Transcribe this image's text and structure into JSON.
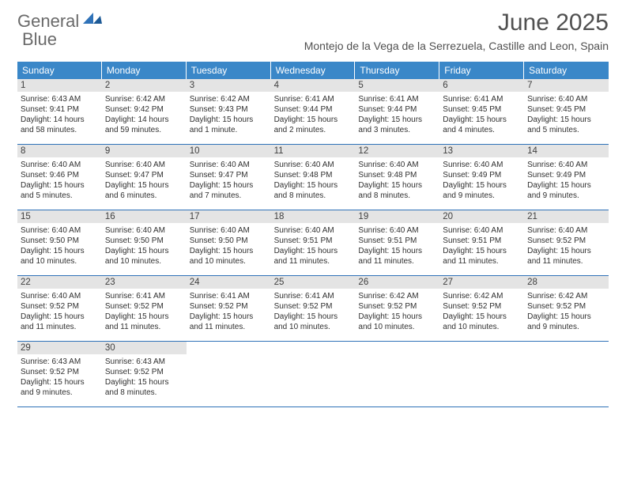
{
  "header": {
    "logo_text1": "General",
    "logo_text2": "Blue",
    "month_title": "June 2025",
    "location": "Montejo de la Vega de la Serrezuela, Castille and Leon, Spain"
  },
  "colors": {
    "header_bg": "#3a87c8",
    "accent_line": "#2f72b8",
    "day_num_bg": "#e4e4e4",
    "text_dark": "#303030",
    "text_gray": "#505050"
  },
  "weekdays": [
    "Sunday",
    "Monday",
    "Tuesday",
    "Wednesday",
    "Thursday",
    "Friday",
    "Saturday"
  ],
  "weeks": [
    [
      {
        "num": "1",
        "sunrise": "Sunrise: 6:43 AM",
        "sunset": "Sunset: 9:41 PM",
        "daylight": "Daylight: 14 hours and 58 minutes."
      },
      {
        "num": "2",
        "sunrise": "Sunrise: 6:42 AM",
        "sunset": "Sunset: 9:42 PM",
        "daylight": "Daylight: 14 hours and 59 minutes."
      },
      {
        "num": "3",
        "sunrise": "Sunrise: 6:42 AM",
        "sunset": "Sunset: 9:43 PM",
        "daylight": "Daylight: 15 hours and 1 minute."
      },
      {
        "num": "4",
        "sunrise": "Sunrise: 6:41 AM",
        "sunset": "Sunset: 9:44 PM",
        "daylight": "Daylight: 15 hours and 2 minutes."
      },
      {
        "num": "5",
        "sunrise": "Sunrise: 6:41 AM",
        "sunset": "Sunset: 9:44 PM",
        "daylight": "Daylight: 15 hours and 3 minutes."
      },
      {
        "num": "6",
        "sunrise": "Sunrise: 6:41 AM",
        "sunset": "Sunset: 9:45 PM",
        "daylight": "Daylight: 15 hours and 4 minutes."
      },
      {
        "num": "7",
        "sunrise": "Sunrise: 6:40 AM",
        "sunset": "Sunset: 9:45 PM",
        "daylight": "Daylight: 15 hours and 5 minutes."
      }
    ],
    [
      {
        "num": "8",
        "sunrise": "Sunrise: 6:40 AM",
        "sunset": "Sunset: 9:46 PM",
        "daylight": "Daylight: 15 hours and 5 minutes."
      },
      {
        "num": "9",
        "sunrise": "Sunrise: 6:40 AM",
        "sunset": "Sunset: 9:47 PM",
        "daylight": "Daylight: 15 hours and 6 minutes."
      },
      {
        "num": "10",
        "sunrise": "Sunrise: 6:40 AM",
        "sunset": "Sunset: 9:47 PM",
        "daylight": "Daylight: 15 hours and 7 minutes."
      },
      {
        "num": "11",
        "sunrise": "Sunrise: 6:40 AM",
        "sunset": "Sunset: 9:48 PM",
        "daylight": "Daylight: 15 hours and 8 minutes."
      },
      {
        "num": "12",
        "sunrise": "Sunrise: 6:40 AM",
        "sunset": "Sunset: 9:48 PM",
        "daylight": "Daylight: 15 hours and 8 minutes."
      },
      {
        "num": "13",
        "sunrise": "Sunrise: 6:40 AM",
        "sunset": "Sunset: 9:49 PM",
        "daylight": "Daylight: 15 hours and 9 minutes."
      },
      {
        "num": "14",
        "sunrise": "Sunrise: 6:40 AM",
        "sunset": "Sunset: 9:49 PM",
        "daylight": "Daylight: 15 hours and 9 minutes."
      }
    ],
    [
      {
        "num": "15",
        "sunrise": "Sunrise: 6:40 AM",
        "sunset": "Sunset: 9:50 PM",
        "daylight": "Daylight: 15 hours and 10 minutes."
      },
      {
        "num": "16",
        "sunrise": "Sunrise: 6:40 AM",
        "sunset": "Sunset: 9:50 PM",
        "daylight": "Daylight: 15 hours and 10 minutes."
      },
      {
        "num": "17",
        "sunrise": "Sunrise: 6:40 AM",
        "sunset": "Sunset: 9:50 PM",
        "daylight": "Daylight: 15 hours and 10 minutes."
      },
      {
        "num": "18",
        "sunrise": "Sunrise: 6:40 AM",
        "sunset": "Sunset: 9:51 PM",
        "daylight": "Daylight: 15 hours and 11 minutes."
      },
      {
        "num": "19",
        "sunrise": "Sunrise: 6:40 AM",
        "sunset": "Sunset: 9:51 PM",
        "daylight": "Daylight: 15 hours and 11 minutes."
      },
      {
        "num": "20",
        "sunrise": "Sunrise: 6:40 AM",
        "sunset": "Sunset: 9:51 PM",
        "daylight": "Daylight: 15 hours and 11 minutes."
      },
      {
        "num": "21",
        "sunrise": "Sunrise: 6:40 AM",
        "sunset": "Sunset: 9:52 PM",
        "daylight": "Daylight: 15 hours and 11 minutes."
      }
    ],
    [
      {
        "num": "22",
        "sunrise": "Sunrise: 6:40 AM",
        "sunset": "Sunset: 9:52 PM",
        "daylight": "Daylight: 15 hours and 11 minutes."
      },
      {
        "num": "23",
        "sunrise": "Sunrise: 6:41 AM",
        "sunset": "Sunset: 9:52 PM",
        "daylight": "Daylight: 15 hours and 11 minutes."
      },
      {
        "num": "24",
        "sunrise": "Sunrise: 6:41 AM",
        "sunset": "Sunset: 9:52 PM",
        "daylight": "Daylight: 15 hours and 11 minutes."
      },
      {
        "num": "25",
        "sunrise": "Sunrise: 6:41 AM",
        "sunset": "Sunset: 9:52 PM",
        "daylight": "Daylight: 15 hours and 10 minutes."
      },
      {
        "num": "26",
        "sunrise": "Sunrise: 6:42 AM",
        "sunset": "Sunset: 9:52 PM",
        "daylight": "Daylight: 15 hours and 10 minutes."
      },
      {
        "num": "27",
        "sunrise": "Sunrise: 6:42 AM",
        "sunset": "Sunset: 9:52 PM",
        "daylight": "Daylight: 15 hours and 10 minutes."
      },
      {
        "num": "28",
        "sunrise": "Sunrise: 6:42 AM",
        "sunset": "Sunset: 9:52 PM",
        "daylight": "Daylight: 15 hours and 9 minutes."
      }
    ],
    [
      {
        "num": "29",
        "sunrise": "Sunrise: 6:43 AM",
        "sunset": "Sunset: 9:52 PM",
        "daylight": "Daylight: 15 hours and 9 minutes."
      },
      {
        "num": "30",
        "sunrise": "Sunrise: 6:43 AM",
        "sunset": "Sunset: 9:52 PM",
        "daylight": "Daylight: 15 hours and 8 minutes."
      },
      null,
      null,
      null,
      null,
      null
    ]
  ]
}
